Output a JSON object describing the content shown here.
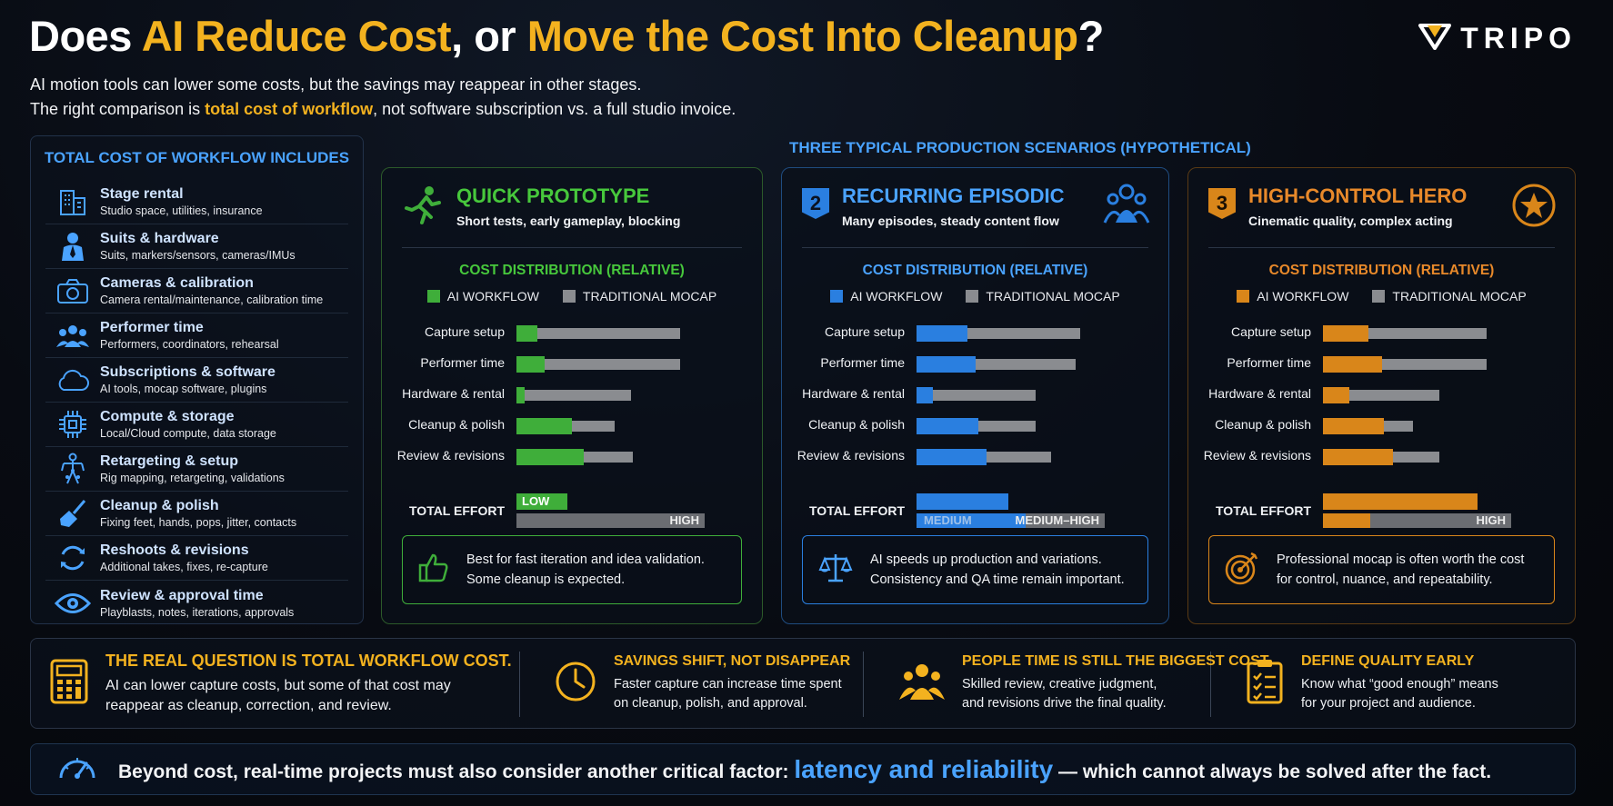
{
  "title": {
    "part1": "Does ",
    "hl1": "AI Reduce Cost",
    "part2": ", or ",
    "hl2": "Move the Cost Into Cleanup",
    "part3": "?"
  },
  "logo": {
    "text": "TRIPO",
    "icon": "tripo-logo-icon"
  },
  "subtitle": {
    "line1": "AI motion tools can lower some costs, but the savings may reappear in other stages.",
    "line2_pre": "The right comparison is ",
    "line2_hl": "total cost of workflow",
    "line2_post": ", not software subscription vs. a full studio invoice."
  },
  "colors": {
    "accent_gold": "#f3b21f",
    "accent_blue": "#4aa3ff",
    "green": "#3fae3a",
    "blue": "#2a7fe0",
    "orange": "#d9861a",
    "trad_gray": "#8a8c90"
  },
  "left_panel": {
    "title": "TOTAL COST OF WORKFLOW INCLUDES",
    "items": [
      {
        "title": "Stage rental",
        "sub": "Studio space, utilities, insurance",
        "icon": "building-icon"
      },
      {
        "title": "Suits & hardware",
        "sub": "Suits, markers/sensors, cameras/IMUs",
        "icon": "suit-person-icon"
      },
      {
        "title": "Cameras & calibration",
        "sub": "Camera rental/maintenance, calibration time",
        "icon": "camera-icon"
      },
      {
        "title": "Performer time",
        "sub": "Performers, coordinators, rehearsal",
        "icon": "people-icon"
      },
      {
        "title": "Subscriptions & software",
        "sub": "AI tools, mocap software, plugins",
        "icon": "cloud-icon"
      },
      {
        "title": "Compute & storage",
        "sub": "Local/Cloud compute, data storage",
        "icon": "chip-icon"
      },
      {
        "title": "Retargeting & setup",
        "sub": "Rig mapping, retargeting, validations",
        "icon": "skeleton-rig-icon"
      },
      {
        "title": "Cleanup & polish",
        "sub": "Fixing feet, hands, pops, jitter, contacts",
        "icon": "broom-icon"
      },
      {
        "title": "Reshoots & revisions",
        "sub": "Additional takes, fixes, re-capture",
        "icon": "refresh-icon"
      },
      {
        "title": "Review & approval time",
        "sub": "Playblasts, notes, iterations, approvals",
        "icon": "eye-icon"
      }
    ]
  },
  "scenarios_heading": "THREE TYPICAL PRODUCTION SCENARIOS (HYPOTHETICAL)",
  "bar_labels": [
    "Capture setup",
    "Performer time",
    "Hardware & rental",
    "Cleanup & polish",
    "Review & revisions"
  ],
  "dist_title": "COST DISTRIBUTION (RELATIVE)",
  "legend_ai": "AI WORKFLOW",
  "legend_trad": "TRADITIONAL MOCAP",
  "effort_label": "TOTAL EFFORT",
  "scenarios": [
    {
      "badge": "",
      "title": "QUICK PROTOTYPE",
      "sub": "Short tests, early gameplay, blocking",
      "icon": "running-person-icon",
      "color": "#3fae3a",
      "title_color": "#47c83c",
      "ai_values": [
        0.13,
        0.17,
        0.05,
        0.34,
        0.41
      ],
      "trad_values": [
        1.0,
        1.0,
        0.7,
        0.6,
        0.71
      ],
      "effort_ai_label": "LOW",
      "effort_ai_value": 0.27,
      "effort_trad_label": "HIGH",
      "effort_trad_value": 1.0,
      "note": [
        "Best for fast iteration and idea validation.",
        "Some cleanup is expected."
      ],
      "note_icon": "thumbs-up-icon"
    },
    {
      "badge": "2",
      "title": "RECURRING EPISODIC",
      "sub": "Many episodes, steady content flow",
      "icon": "team-icon",
      "color": "#2a7fe0",
      "title_color": "#4aa3ff",
      "ai_values": [
        0.31,
        0.36,
        0.1,
        0.38,
        0.43
      ],
      "trad_values": [
        1.0,
        0.97,
        0.73,
        0.73,
        0.82
      ],
      "effort_ai_label": "",
      "effort_ai_value": 0.49,
      "effort_trad_label": "MEDIUM–HIGH",
      "effort_trad_value": 1.0,
      "effort_ai_bottom_label": "MEDIUM",
      "effort_ai_bottom_value": 0.58,
      "note": [
        "AI speeds up production and variations.",
        "Consistency and QA time remain important."
      ],
      "note_icon": "balance-scale-icon"
    },
    {
      "badge": "3",
      "title": "HIGH-CONTROL HERO",
      "sub": "Cinematic quality, complex acting",
      "icon": "star-circle-icon",
      "color": "#d9861a",
      "title_color": "#e8892a",
      "ai_values": [
        0.28,
        0.36,
        0.16,
        0.37,
        0.43
      ],
      "trad_values": [
        1.0,
        1.0,
        0.71,
        0.55,
        0.71
      ],
      "effort_ai_label": "",
      "effort_ai_value": 0.82,
      "effort_trad_label": "HIGH",
      "effort_trad_value": 1.0,
      "effort_ai_bottom_label": "",
      "effort_ai_bottom_value": 0.25,
      "note": [
        "Professional mocap is often worth the cost",
        "for control, nuance, and repeatability."
      ],
      "note_icon": "target-icon"
    }
  ],
  "bottom_strip": [
    {
      "title": "THE REAL QUESTION IS TOTAL WORKFLOW COST.",
      "lines": [
        "AI can lower capture costs, but some of that cost may",
        "reappear as cleanup, correction, and review."
      ],
      "icon": "calculator-icon"
    },
    {
      "title": "SAVINGS SHIFT, NOT DISAPPEAR",
      "lines": [
        "Faster capture can increase time spent",
        "on cleanup, polish, and approval."
      ],
      "icon": "clock-icon"
    },
    {
      "title": "PEOPLE TIME IS STILL THE BIGGEST COST",
      "lines": [
        "Skilled review, creative judgment,",
        "and revisions drive the final quality."
      ],
      "icon": "people-group-icon"
    },
    {
      "title": "DEFINE QUALITY EARLY",
      "lines": [
        "Know what “good enough” means",
        "for your project and audience."
      ],
      "icon": "checklist-icon"
    }
  ],
  "footer": {
    "pre": "Beyond cost, real-time projects must also consider another critical factor: ",
    "hl": "latency and reliability",
    "post": " — which cannot always be solved after the fact.",
    "icon": "speedometer-icon"
  }
}
